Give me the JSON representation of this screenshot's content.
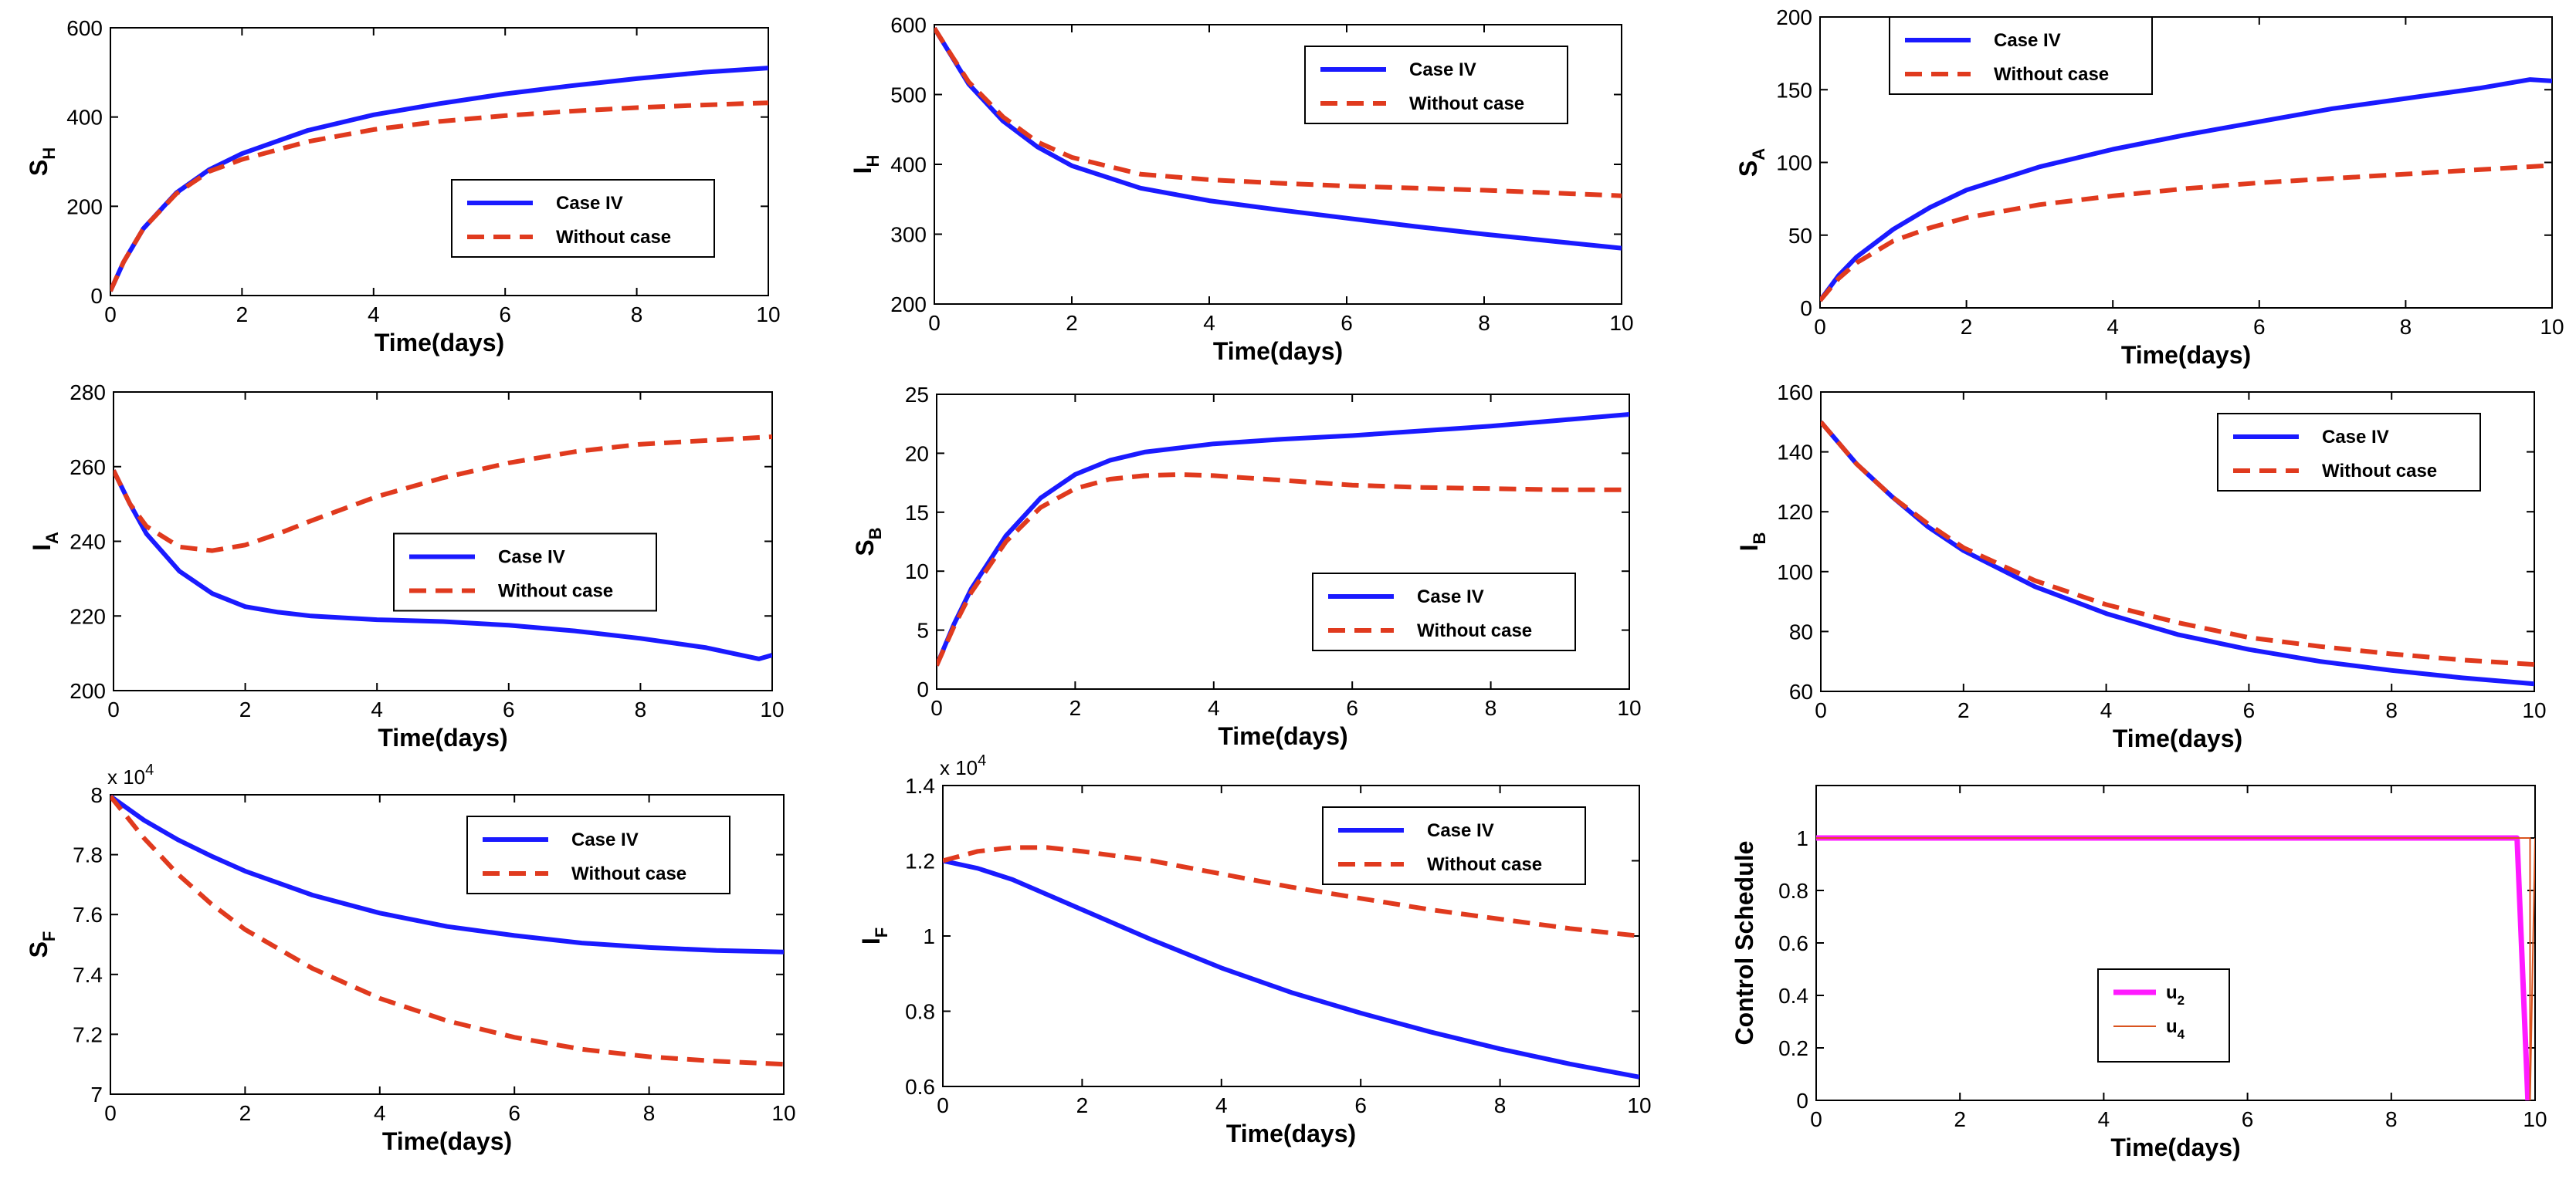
{
  "chart_data": [
    {
      "type": "line",
      "id": "p1",
      "ylabel_main": "S",
      "ylabel_sub": "H",
      "xlabel": "Time(days)",
      "xlim": [
        0,
        10
      ],
      "ylim": [
        0,
        600
      ],
      "xticks": [
        0,
        2,
        4,
        6,
        8,
        10
      ],
      "yticks": [
        0,
        200,
        400,
        600
      ],
      "multiplier": "",
      "legend_position": "lower-right",
      "series": [
        {
          "name": "Case IV",
          "color": "#1a1aff",
          "style": "solid",
          "x": [
            0,
            0.2,
            0.5,
            1,
            1.5,
            2,
            3,
            4,
            5,
            6,
            7,
            8,
            9,
            10
          ],
          "y": [
            10,
            75,
            150,
            230,
            282,
            318,
            370,
            405,
            430,
            452,
            470,
            486,
            500,
            510
          ]
        },
        {
          "name": "Without case",
          "color": "#e03a1e",
          "style": "dashed",
          "x": [
            0,
            0.2,
            0.5,
            1,
            1.5,
            2,
            3,
            4,
            5,
            6,
            7,
            8,
            9,
            10
          ],
          "y": [
            10,
            75,
            150,
            228,
            278,
            305,
            345,
            372,
            390,
            403,
            413,
            421,
            427,
            432
          ]
        }
      ]
    },
    {
      "type": "line",
      "id": "p2",
      "ylabel_main": "I",
      "ylabel_sub": "H",
      "xlabel": "Time(days)",
      "xlim": [
        0,
        10
      ],
      "ylim": [
        200,
        600
      ],
      "xticks": [
        0,
        2,
        4,
        6,
        8,
        10
      ],
      "yticks": [
        200,
        300,
        400,
        500,
        600
      ],
      "multiplier": "",
      "legend_position": "top-right",
      "series": [
        {
          "name": "Case IV",
          "color": "#1a1aff",
          "style": "solid",
          "x": [
            0,
            0.25,
            0.5,
            1,
            1.5,
            2,
            3,
            4,
            5,
            6,
            7,
            8,
            9,
            10
          ],
          "y": [
            595,
            555,
            515,
            462,
            425,
            398,
            366,
            348,
            335,
            323,
            311,
            300,
            290,
            280
          ]
        },
        {
          "name": "Without case",
          "color": "#e03a1e",
          "style": "dashed",
          "x": [
            0,
            0.25,
            0.5,
            1,
            1.5,
            2,
            3,
            4,
            5,
            6,
            7,
            8,
            9,
            10
          ],
          "y": [
            595,
            556,
            518,
            468,
            432,
            410,
            386,
            378,
            373,
            369,
            366,
            363,
            359,
            355
          ]
        }
      ]
    },
    {
      "type": "line",
      "id": "p3",
      "ylabel_main": "S",
      "ylabel_sub": "A",
      "xlabel": "Time(days)",
      "xlim": [
        0,
        10
      ],
      "ylim": [
        0,
        200
      ],
      "xticks": [
        0,
        2,
        4,
        6,
        8,
        10
      ],
      "yticks": [
        0,
        50,
        100,
        150,
        200
      ],
      "multiplier": "",
      "legend_position": "top-left",
      "series": [
        {
          "name": "Case IV",
          "color": "#1a1aff",
          "style": "solid",
          "x": [
            0,
            0.25,
            0.5,
            1,
            1.5,
            2,
            3,
            4,
            5,
            6,
            7,
            8,
            9,
            9.7,
            10
          ],
          "y": [
            5,
            22,
            35,
            54,
            69,
            81,
            97,
            109,
            119,
            128,
            137,
            144,
            151,
            157,
            156
          ]
        },
        {
          "name": "Without case",
          "color": "#e03a1e",
          "style": "dashed",
          "x": [
            0,
            0.25,
            0.5,
            1,
            1.5,
            2,
            3,
            4,
            5,
            6,
            7,
            8,
            9,
            10
          ],
          "y": [
            5,
            20,
            31,
            46,
            55,
            62,
            71,
            77,
            82,
            86,
            89,
            92,
            95,
            98
          ]
        }
      ]
    },
    {
      "type": "line",
      "id": "p4",
      "ylabel_main": "I",
      "ylabel_sub": "A",
      "xlabel": "Time(days)",
      "xlim": [
        0,
        10
      ],
      "ylim": [
        200,
        280
      ],
      "xticks": [
        0,
        2,
        4,
        6,
        8,
        10
      ],
      "yticks": [
        200,
        220,
        240,
        260,
        280
      ],
      "multiplier": "",
      "legend_position": "center-right",
      "series": [
        {
          "name": "Case IV",
          "color": "#1a1aff",
          "style": "solid",
          "x": [
            0,
            0.25,
            0.5,
            1,
            1.5,
            2,
            2.5,
            3,
            4,
            5,
            6,
            7,
            8,
            9,
            9.8,
            10
          ],
          "y": [
            259,
            250,
            242,
            232,
            226,
            222.5,
            221,
            220,
            219,
            218.5,
            217.5,
            216,
            214,
            211.5,
            208.5,
            209.5
          ]
        },
        {
          "name": "Without case",
          "color": "#e03a1e",
          "style": "dashed",
          "x": [
            0,
            0.25,
            0.5,
            1,
            1.5,
            2,
            2.5,
            3,
            4,
            5,
            6,
            7,
            8,
            9,
            10
          ],
          "y": [
            259,
            250,
            244,
            238.5,
            237.5,
            239,
            242,
            245.5,
            252,
            257,
            261,
            264,
            266,
            267,
            268
          ]
        }
      ]
    },
    {
      "type": "line",
      "id": "p5",
      "ylabel_main": "S",
      "ylabel_sub": "B",
      "xlabel": "Time(days)",
      "xlim": [
        0,
        10
      ],
      "ylim": [
        0,
        25
      ],
      "xticks": [
        0,
        2,
        4,
        6,
        8,
        10
      ],
      "yticks": [
        0,
        5,
        10,
        15,
        20,
        25
      ],
      "multiplier": "",
      "legend_position": "lower-right",
      "series": [
        {
          "name": "Case IV",
          "color": "#1a1aff",
          "style": "solid",
          "x": [
            0,
            0.25,
            0.5,
            1,
            1.5,
            2,
            2.5,
            3,
            4,
            5,
            6,
            7,
            8,
            9,
            10
          ],
          "y": [
            2,
            5.5,
            8.5,
            13,
            16.2,
            18.2,
            19.4,
            20.1,
            20.8,
            21.2,
            21.5,
            21.9,
            22.3,
            22.8,
            23.3
          ]
        },
        {
          "name": "Without case",
          "color": "#e03a1e",
          "style": "dashed",
          "x": [
            0,
            0.25,
            0.5,
            1,
            1.5,
            2,
            2.5,
            3,
            3.5,
            4,
            5,
            6,
            7,
            8,
            9,
            10
          ],
          "y": [
            2,
            5.3,
            8.2,
            12.5,
            15.4,
            17,
            17.8,
            18.1,
            18.2,
            18.1,
            17.7,
            17.3,
            17.1,
            17,
            16.9,
            16.9
          ]
        }
      ]
    },
    {
      "type": "line",
      "id": "p6",
      "ylabel_main": "I",
      "ylabel_sub": "B",
      "xlabel": "Time(days)",
      "xlim": [
        0,
        10
      ],
      "ylim": [
        60,
        160
      ],
      "xticks": [
        0,
        2,
        4,
        6,
        8,
        10
      ],
      "yticks": [
        60,
        80,
        100,
        120,
        140,
        160
      ],
      "multiplier": "",
      "legend_position": "top-right",
      "series": [
        {
          "name": "Case IV",
          "color": "#1a1aff",
          "style": "solid",
          "x": [
            0,
            0.5,
            1,
            1.5,
            2,
            3,
            4,
            5,
            6,
            7,
            8,
            9,
            10
          ],
          "y": [
            150,
            136,
            125,
            115,
            107,
            95,
            86,
            79,
            74,
            70,
            67,
            64.5,
            62.5
          ]
        },
        {
          "name": "Without case",
          "color": "#e03a1e",
          "style": "dashed",
          "x": [
            0,
            0.5,
            1,
            1.5,
            2,
            3,
            4,
            5,
            6,
            7,
            8,
            9,
            10
          ],
          "y": [
            150,
            136,
            125,
            116,
            108,
            97,
            89,
            83,
            78,
            75,
            72.5,
            70.5,
            69
          ]
        }
      ]
    },
    {
      "type": "line",
      "id": "p7",
      "ylabel_main": "S",
      "ylabel_sub": "F",
      "xlabel": "Time(days)",
      "xlim": [
        0,
        10
      ],
      "ylim": [
        7,
        8
      ],
      "xticks": [
        0,
        2,
        4,
        6,
        8,
        10
      ],
      "yticks": [
        7,
        7.2,
        7.4,
        7.6,
        7.8,
        8
      ],
      "multiplier": "x 10",
      "multiplier_exp": "4",
      "legend_position": "top-right",
      "series": [
        {
          "name": "Case IV",
          "color": "#1a1aff",
          "style": "solid",
          "x": [
            0,
            0.5,
            1,
            1.5,
            2,
            3,
            4,
            5,
            6,
            7,
            8,
            9,
            10
          ],
          "y": [
            7.995,
            7.915,
            7.85,
            7.795,
            7.745,
            7.665,
            7.605,
            7.56,
            7.53,
            7.505,
            7.49,
            7.48,
            7.475
          ]
        },
        {
          "name": "Without case",
          "color": "#e03a1e",
          "style": "dashed",
          "x": [
            0,
            0.5,
            1,
            1.5,
            2,
            3,
            4,
            5,
            6,
            7,
            8,
            9,
            10
          ],
          "y": [
            7.995,
            7.855,
            7.735,
            7.635,
            7.55,
            7.42,
            7.32,
            7.245,
            7.19,
            7.15,
            7.125,
            7.11,
            7.1
          ]
        }
      ]
    },
    {
      "type": "line",
      "id": "p8",
      "ylabel_main": "I",
      "ylabel_sub": "F",
      "xlabel": "Time(days)",
      "xlim": [
        0,
        10
      ],
      "ylim": [
        0.6,
        1.4
      ],
      "xticks": [
        0,
        2,
        4,
        6,
        8,
        10
      ],
      "yticks": [
        0.6,
        0.8,
        1,
        1.2,
        1.4
      ],
      "multiplier": "x 10",
      "multiplier_exp": "4",
      "legend_position": "top-right",
      "series": [
        {
          "name": "Case IV",
          "color": "#1a1aff",
          "style": "solid",
          "x": [
            0,
            0.5,
            1,
            1.5,
            2,
            3,
            4,
            5,
            6,
            7,
            8,
            9,
            10
          ],
          "y": [
            1.2,
            1.18,
            1.15,
            1.11,
            1.07,
            0.99,
            0.915,
            0.85,
            0.795,
            0.745,
            0.7,
            0.66,
            0.625
          ]
        },
        {
          "name": "Without case",
          "color": "#e03a1e",
          "style": "dashed",
          "x": [
            0,
            0.5,
            1,
            1.5,
            2,
            3,
            4,
            5,
            6,
            7,
            8,
            9,
            10
          ],
          "y": [
            1.2,
            1.225,
            1.235,
            1.235,
            1.225,
            1.2,
            1.165,
            1.13,
            1.1,
            1.07,
            1.045,
            1.02,
            1.0
          ]
        }
      ]
    },
    {
      "type": "line",
      "id": "p9",
      "ylabel_main": "Control Schedule",
      "ylabel_sub": "",
      "xlabel": "Time(days)",
      "xlim": [
        0,
        10
      ],
      "ylim": [
        0,
        1.2
      ],
      "xticks": [
        0,
        2,
        4,
        6,
        8,
        10
      ],
      "yticks": [
        0,
        0.2,
        0.4,
        0.6,
        0.8,
        1
      ],
      "multiplier": "",
      "legend_position": "lower-center",
      "series": [
        {
          "name": "u",
          "sub": "2",
          "color": "#ff1aff",
          "style": "solid",
          "width": 7,
          "x": [
            0,
            9.75,
            9.9
          ],
          "y": [
            1,
            1,
            0
          ]
        },
        {
          "name": "u",
          "sub": "4",
          "color": "#d9531e",
          "style": "solid",
          "width": 2,
          "x": [
            0,
            9.93,
            9.93,
            10
          ],
          "y": [
            1,
            1,
            0,
            1
          ]
        }
      ]
    }
  ]
}
